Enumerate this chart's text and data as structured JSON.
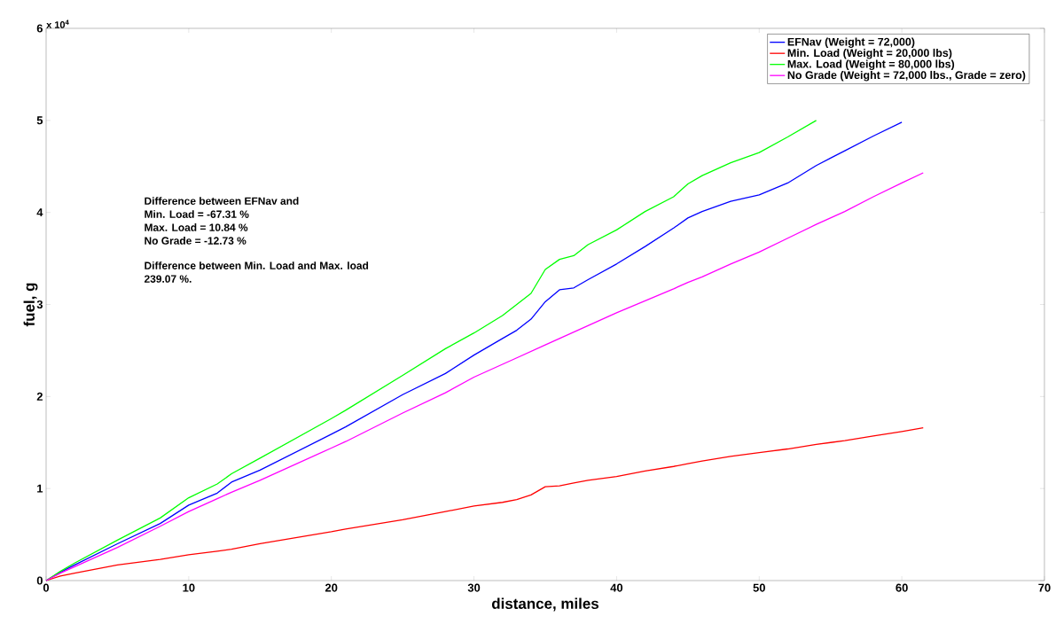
{
  "chart_data": {
    "type": "line",
    "xlabel": "distance, miles",
    "ylabel": "fuel, g",
    "x": [
      0,
      1,
      2,
      5,
      8,
      10,
      12,
      13,
      15,
      20,
      21,
      25,
      28,
      30,
      32,
      33,
      34,
      35,
      36,
      37,
      38,
      40,
      42,
      44,
      45,
      46,
      48,
      50,
      52,
      54,
      55,
      56,
      58,
      60,
      61.5
    ],
    "series": [
      {
        "name": "EFNav (Weight = 72,000)",
        "color": "#0000ff",
        "values": [
          0,
          0.09,
          0.17,
          0.4,
          0.62,
          0.82,
          0.95,
          1.07,
          1.2,
          1.59,
          1.67,
          2.02,
          2.25,
          2.45,
          2.63,
          2.72,
          2.84,
          3.03,
          3.16,
          3.18,
          3.27,
          3.44,
          3.63,
          3.83,
          3.94,
          4.01,
          4.12,
          4.19,
          4.32,
          4.51,
          4.59,
          4.67,
          4.83,
          4.98,
          null
        ]
      },
      {
        "name": "Min. Load (Weight = 20,000 lbs)",
        "color": "#ff0000",
        "values": [
          0,
          0.05,
          0.08,
          0.17,
          0.23,
          0.28,
          0.32,
          0.34,
          0.4,
          0.53,
          0.56,
          0.66,
          0.75,
          0.81,
          0.85,
          0.88,
          0.93,
          1.02,
          1.03,
          1.06,
          1.09,
          1.13,
          1.19,
          1.24,
          1.27,
          1.3,
          1.35,
          1.39,
          1.43,
          1.48,
          1.5,
          1.52,
          1.57,
          1.62,
          1.66
        ]
      },
      {
        "name": "Max. Load (Weight = 80,000 lbs)",
        "color": "#00ff00",
        "values": [
          0,
          0.1,
          0.19,
          0.44,
          0.68,
          0.9,
          1.05,
          1.16,
          1.33,
          1.76,
          1.85,
          2.23,
          2.52,
          2.69,
          2.88,
          3.0,
          3.12,
          3.38,
          3.49,
          3.53,
          3.65,
          3.81,
          4.01,
          4.17,
          4.31,
          4.4,
          4.54,
          4.65,
          4.82,
          5.0,
          null,
          null,
          null,
          null,
          null
        ]
      },
      {
        "name": "No Grade (Weight = 72,000 lbs., Grade = zero)",
        "color": "#ff00ff",
        "values": [
          0,
          0.08,
          0.15,
          0.36,
          0.59,
          0.75,
          0.89,
          0.96,
          1.09,
          1.44,
          1.51,
          1.82,
          2.04,
          2.21,
          2.35,
          2.42,
          2.49,
          2.56,
          2.63,
          2.7,
          2.77,
          2.91,
          3.04,
          3.17,
          3.24,
          3.3,
          3.44,
          3.57,
          3.72,
          3.87,
          3.94,
          4.01,
          4.17,
          4.32,
          4.43
        ]
      }
    ],
    "xlim": [
      0,
      70
    ],
    "xticks": [
      0,
      10,
      20,
      30,
      40,
      50,
      60,
      70
    ],
    "ylim": [
      0,
      6
    ],
    "yticks": [
      0,
      1,
      2,
      3,
      4,
      5,
      6
    ],
    "annotations": [
      "x 10$^{4}$",
      "Difference between EFNav and",
      "Min. Load = -67.31 %",
      "Max. Load = 10.84 %",
      "No Grade = -12.73 %",
      "Difference between Min. Load and Max. load",
      "239.07 %."
    ],
    "legend": "top right",
    "grid": false,
    "marker": "none",
    "line_style": "solid"
  }
}
